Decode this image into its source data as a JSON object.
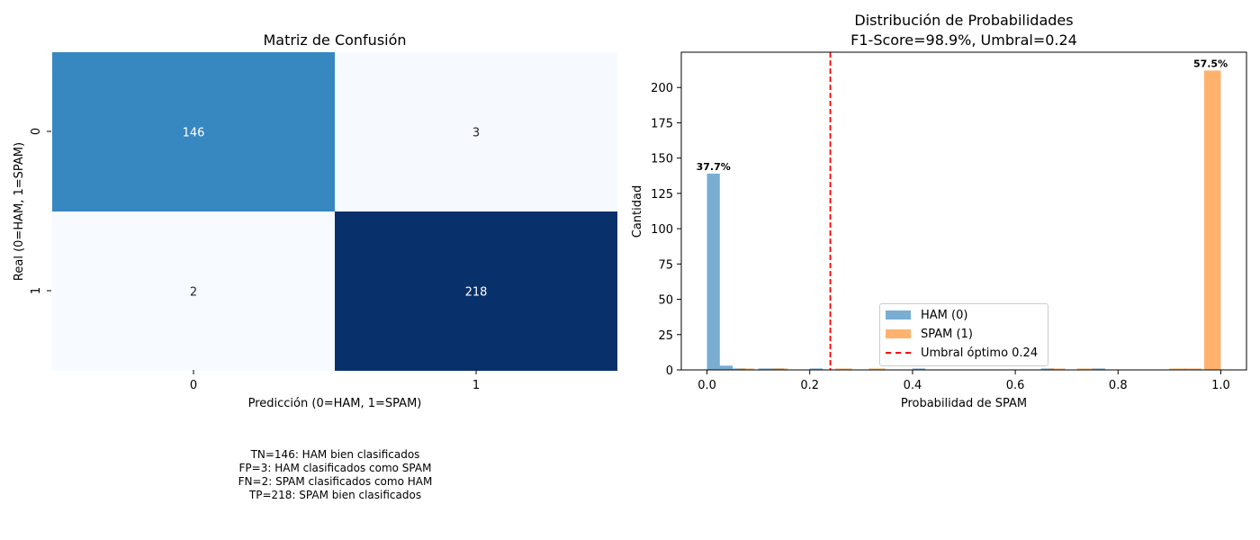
{
  "confusion_matrix": {
    "title": "Matriz de Confusión",
    "xlabel": "Predicción (0=HAM, 1=SPAM)",
    "ylabel": "Real (0=HAM, 1=SPAM)",
    "x_ticks": [
      "0",
      "1"
    ],
    "y_ticks": [
      "0",
      "1"
    ],
    "colors": {
      "low": "#f7fbff",
      "high": "#08306b",
      "cmap": "Blues"
    }
  },
  "summary": {
    "lines": [
      "TN=146: HAM bien clasificados",
      "FP=3: HAM clasificados como SPAM",
      "FN=2: SPAM clasificados como HAM",
      "TP=218: SPAM bien clasificados"
    ]
  },
  "histogram": {
    "title_line1": "Distribución de Probabilidades",
    "title_line2": "F1-Score=98.9%, Umbral=0.24",
    "xlabel": "Probabilidad de SPAM",
    "ylabel": "Cantidad",
    "legend": {
      "ham": "HAM (0)",
      "spam": "SPAM (1)",
      "threshold": "Umbral óptimo 0.24"
    },
    "annotations": {
      "ham_pct": "37.7%",
      "spam_pct": "57.5%"
    },
    "colors": {
      "ham": "#1f77b4",
      "spam": "#ff7f0e",
      "threshold": "#ff0000"
    }
  },
  "chart_data": [
    {
      "type": "heatmap",
      "title": "Matriz de Confusión",
      "xlabel": "Predicción (0=HAM, 1=SPAM)",
      "ylabel": "Real (0=HAM, 1=SPAM)",
      "x_categories": [
        "0",
        "1"
      ],
      "y_categories": [
        "0",
        "1"
      ],
      "values": [
        [
          146,
          3
        ],
        [
          2,
          218
        ]
      ],
      "grid": false
    },
    {
      "type": "bar",
      "title": "Distribución de Probabilidades\nF1-Score=98.9%, Umbral=0.24",
      "xlabel": "Probabilidad de SPAM",
      "ylabel": "Cantidad",
      "xlim": [
        -0.05,
        1.05
      ],
      "ylim": [
        0,
        225
      ],
      "x_ticks": [
        0.0,
        0.2,
        0.4,
        0.6,
        0.8,
        1.0
      ],
      "y_ticks": [
        0,
        25,
        50,
        75,
        100,
        125,
        150,
        175,
        200
      ],
      "x_tick_labels": [
        "0.0",
        "0.2",
        "0.4",
        "0.6",
        "0.8",
        "1.0"
      ],
      "y_tick_labels": [
        "0",
        "25",
        "50",
        "75",
        "100",
        "125",
        "150",
        "175",
        "200"
      ],
      "threshold": 0.24,
      "legend_position": "lower-center",
      "grid": false,
      "series": [
        {
          "name": "HAM (0)",
          "bin_width": 0.025,
          "bins": [
            {
              "x0": 0.0,
              "count": 139
            },
            {
              "x0": 0.025,
              "count": 3
            },
            {
              "x0": 0.05,
              "count": 1
            },
            {
              "x0": 0.1,
              "count": 1
            },
            {
              "x0": 0.125,
              "count": 1
            },
            {
              "x0": 0.2,
              "count": 1
            },
            {
              "x0": 0.4,
              "count": 1
            },
            {
              "x0": 0.65,
              "count": 1
            },
            {
              "x0": 0.75,
              "count": 1
            }
          ]
        },
        {
          "name": "SPAM (1)",
          "bin_width": 0.0325,
          "bins": [
            {
              "x0": 0.06,
              "count": 1
            },
            {
              "x0": 0.125,
              "count": 1
            },
            {
              "x0": 0.25,
              "count": 1
            },
            {
              "x0": 0.315,
              "count": 1
            },
            {
              "x0": 0.665,
              "count": 1
            },
            {
              "x0": 0.72,
              "count": 1
            },
            {
              "x0": 0.9,
              "count": 1
            },
            {
              "x0": 0.93,
              "count": 1
            },
            {
              "x0": 0.9675,
              "count": 212
            }
          ]
        }
      ],
      "annotations": [
        {
          "text": "37.7%",
          "x": 0.0125,
          "y": 139
        },
        {
          "text": "57.5%",
          "x": 0.98,
          "y": 212
        }
      ]
    }
  ]
}
